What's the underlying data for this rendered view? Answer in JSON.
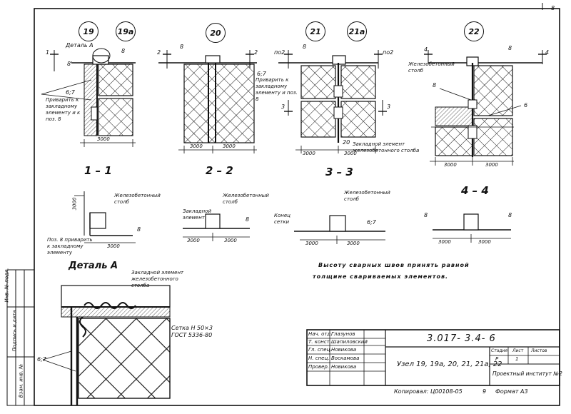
{
  "sheet": {
    "page_number": "8",
    "copied_by": "Копировал: Ц00108-05",
    "copy_num": "9",
    "format": "Формат А3"
  },
  "nodes": [
    {
      "num": "19"
    },
    {
      "num": "19а"
    },
    {
      "num": "20"
    },
    {
      "num": "21"
    },
    {
      "num": "21а"
    },
    {
      "num": "22"
    }
  ],
  "detail_a_top": "Деталь А",
  "labels": {
    "pos8": "8",
    "pos8_prime": "8'",
    "pos6": "6",
    "weld_note_67": "6;7",
    "weld_note_text_1": "Приварить к закладному элементу и к поз. 8",
    "weld_note_text_2": "Приварить к закладному элементу и поз. 8",
    "post_label": "Железобетонный столб",
    "embedded_label": "Закладной элемент железобетонного столба",
    "cut1": "1",
    "cut2": "2",
    "cut3": "3",
    "cut4": "4",
    "cut2_pos": "по2",
    "dim_20": "20"
  },
  "dims": {
    "d3000": "3000"
  },
  "sections": [
    "1 – 1",
    "2 – 2",
    "3 – 3",
    "4 – 4"
  ],
  "lower": {
    "post_1": "Железобетонный столб",
    "post_2": "Железобетонный столб",
    "post_3": "Железобетонный столб",
    "embedded": "Закладной элемент",
    "mesh_end": "Конец сетки",
    "pos8_note": "Поз. 8 приварить к закладному элементу",
    "dim_3000": "3000"
  },
  "detail_a": {
    "title": "Деталь А",
    "embedded": "Закладной элемент железобетонного столба",
    "mesh": "Сетка Н 50×3",
    "gost": "ГОСТ 5336-80",
    "welds": "6;7"
  },
  "note": {
    "line1": "Высоту сварных швов принять равной",
    "line2": "толщине свариваемых элементов."
  },
  "title_block": {
    "doc_code": "3.017- 3.4- 6",
    "title": "Узел 19, 19а, 20, 21, 21а, 22",
    "stage_h": "Стадия",
    "sheet_h": "Лист",
    "sheets_h": "Листов",
    "stage": "Р",
    "sheet": "1",
    "org": "Проектный институт №2",
    "rows": [
      {
        "role": "Нач. отд.",
        "name": "Глазунов"
      },
      {
        "role": "Т. конст.",
        "name": "Шапиловский"
      },
      {
        "role": "Гл. спец.",
        "name": "Новикова"
      },
      {
        "role": "Н. спец.",
        "name": "Воскамова"
      },
      {
        "role": "Провер.",
        "name": "Новикова"
      }
    ]
  },
  "side_stamp": {
    "a": "Инв. № подл.",
    "b": "Подпись и дата",
    "c": "Взам. инв. №"
  }
}
